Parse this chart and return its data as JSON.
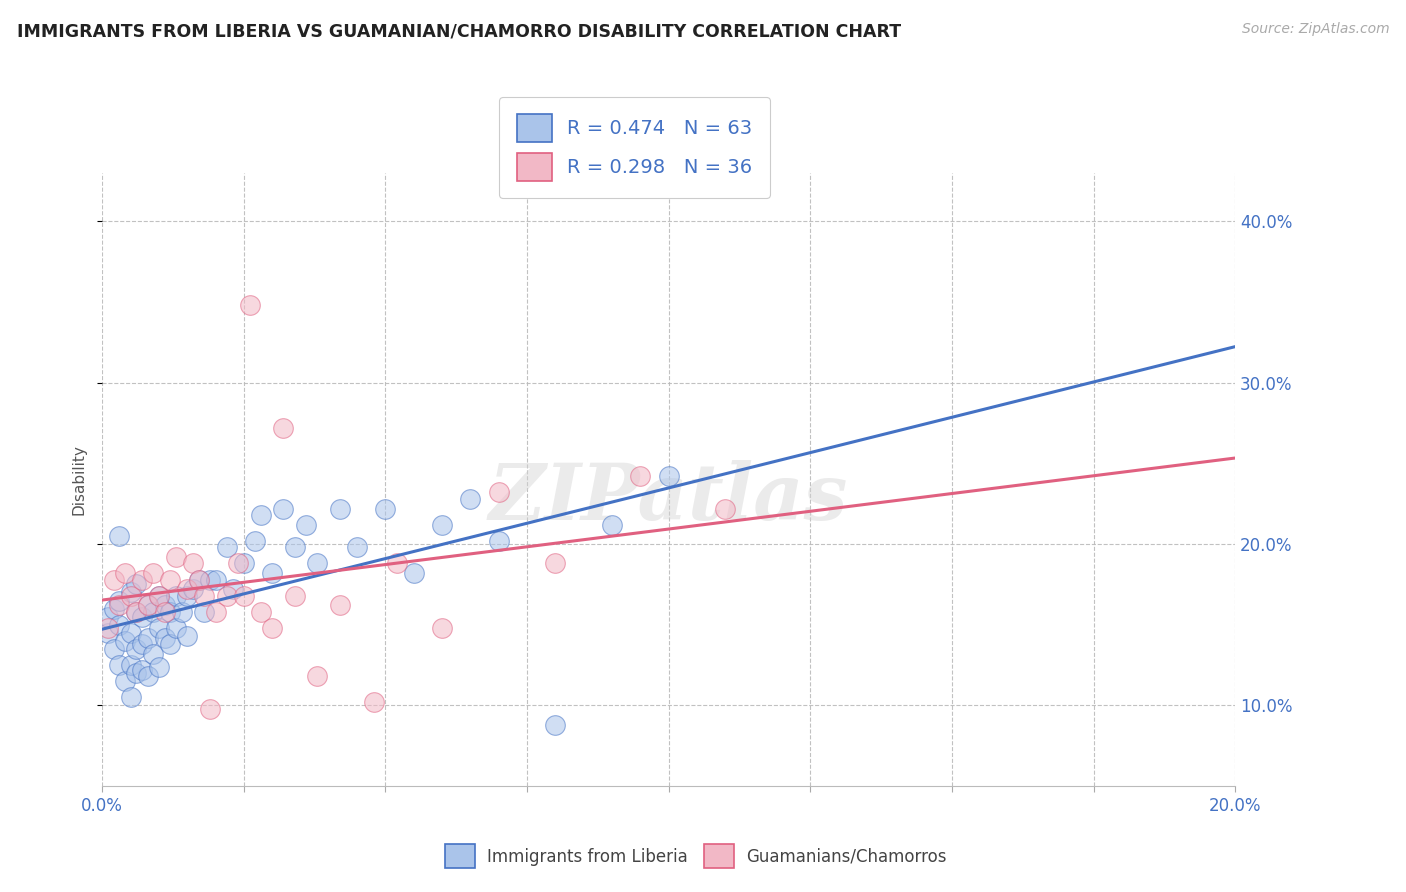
{
  "title": "IMMIGRANTS FROM LIBERIA VS GUAMANIAN/CHAMORRO DISABILITY CORRELATION CHART",
  "source_text": "Source: ZipAtlas.com",
  "ylabel": "Disability",
  "xlim": [
    0.0,
    0.2
  ],
  "ylim": [
    0.05,
    0.43
  ],
  "yticks": [
    0.1,
    0.2,
    0.3,
    0.4
  ],
  "ytick_labels": [
    "10.0%",
    "20.0%",
    "30.0%",
    "40.0%"
  ],
  "xticks": [
    0.0,
    0.025,
    0.05,
    0.075,
    0.1,
    0.125,
    0.15,
    0.175,
    0.2
  ],
  "xtick_labels": [
    "0.0%",
    "",
    "",
    "",
    "",
    "",
    "",
    "",
    "20.0%"
  ],
  "legend_r1": "R = 0.474",
  "legend_n1": "N = 63",
  "legend_r2": "R = 0.298",
  "legend_n2": "N = 36",
  "color_blue": "#aac4ea",
  "color_pink": "#f2b8c6",
  "line_blue": "#4472c4",
  "line_pink": "#e06080",
  "watermark": "ZIPatlas",
  "background_color": "#ffffff",
  "blue_scatter_x": [
    0.001,
    0.001,
    0.002,
    0.002,
    0.003,
    0.003,
    0.003,
    0.004,
    0.004,
    0.005,
    0.005,
    0.005,
    0.005,
    0.006,
    0.006,
    0.006,
    0.006,
    0.007,
    0.007,
    0.007,
    0.008,
    0.008,
    0.008,
    0.009,
    0.009,
    0.01,
    0.01,
    0.01,
    0.011,
    0.011,
    0.012,
    0.012,
    0.013,
    0.013,
    0.014,
    0.015,
    0.015,
    0.016,
    0.017,
    0.018,
    0.019,
    0.02,
    0.022,
    0.023,
    0.025,
    0.027,
    0.028,
    0.03,
    0.032,
    0.034,
    0.036,
    0.038,
    0.042,
    0.045,
    0.05,
    0.055,
    0.06,
    0.065,
    0.07,
    0.08,
    0.09,
    0.1,
    0.003
  ],
  "blue_scatter_y": [
    0.145,
    0.155,
    0.135,
    0.16,
    0.125,
    0.15,
    0.165,
    0.115,
    0.14,
    0.105,
    0.125,
    0.145,
    0.17,
    0.12,
    0.135,
    0.158,
    0.175,
    0.122,
    0.138,
    0.155,
    0.118,
    0.142,
    0.162,
    0.132,
    0.158,
    0.124,
    0.148,
    0.168,
    0.142,
    0.162,
    0.138,
    0.158,
    0.148,
    0.168,
    0.158,
    0.143,
    0.168,
    0.172,
    0.178,
    0.158,
    0.178,
    0.178,
    0.198,
    0.172,
    0.188,
    0.202,
    0.218,
    0.182,
    0.222,
    0.198,
    0.212,
    0.188,
    0.222,
    0.198,
    0.222,
    0.182,
    0.212,
    0.228,
    0.202,
    0.088,
    0.212,
    0.242,
    0.205
  ],
  "pink_scatter_x": [
    0.001,
    0.002,
    0.003,
    0.004,
    0.005,
    0.006,
    0.007,
    0.008,
    0.009,
    0.01,
    0.011,
    0.012,
    0.013,
    0.015,
    0.016,
    0.017,
    0.018,
    0.019,
    0.02,
    0.022,
    0.024,
    0.025,
    0.026,
    0.028,
    0.03,
    0.032,
    0.034,
    0.038,
    0.042,
    0.048,
    0.052,
    0.06,
    0.07,
    0.08,
    0.095,
    0.11
  ],
  "pink_scatter_y": [
    0.148,
    0.178,
    0.162,
    0.182,
    0.168,
    0.158,
    0.178,
    0.162,
    0.182,
    0.168,
    0.158,
    0.178,
    0.192,
    0.172,
    0.188,
    0.178,
    0.168,
    0.098,
    0.158,
    0.168,
    0.188,
    0.168,
    0.348,
    0.158,
    0.148,
    0.272,
    0.168,
    0.118,
    0.162,
    0.102,
    0.188,
    0.148,
    0.232,
    0.188,
    0.242,
    0.222
  ]
}
